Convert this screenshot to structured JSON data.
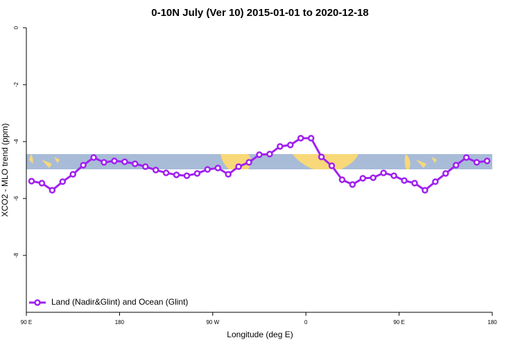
{
  "chart_data": {
    "type": "line",
    "title": "0-10N July (Ver 10)   2015-01-01 to 2020-12-18",
    "x_label": "Longitude (deg E)",
    "y_label": "XCO2 - MLO trend (ppm)",
    "xlim": [
      90,
      540
    ],
    "xticks": [
      {
        "value": 90,
        "label": "90 E"
      },
      {
        "value": 180,
        "label": "180"
      },
      {
        "value": 270,
        "label": "90 W"
      },
      {
        "value": 360,
        "label": "0"
      },
      {
        "value": 450,
        "label": "90 E"
      },
      {
        "value": 540,
        "label": "180"
      }
    ],
    "ylim": [
      -10,
      0
    ],
    "yticks": [
      0,
      -2,
      -4,
      -6,
      -8
    ],
    "legend": "bottom-left",
    "x": [
      95,
      105,
      115,
      125,
      135,
      145,
      155,
      165,
      175,
      185,
      195,
      205,
      215,
      225,
      235,
      245,
      255,
      265,
      275,
      285,
      295,
      305,
      315,
      325,
      335,
      345,
      355,
      365,
      375,
      385,
      395,
      405,
      415,
      425,
      435,
      445,
      455,
      465,
      475,
      485,
      495,
      505,
      515,
      525,
      535
    ],
    "series": [
      {
        "name": "Land (Nadir&Glint) and Ocean (Glint)",
        "color": "#a020f0",
        "values": [
          -5.39,
          -5.46,
          -5.71,
          -5.41,
          -5.15,
          -4.83,
          -4.56,
          -4.73,
          -4.68,
          -4.71,
          -4.78,
          -4.88,
          -5.0,
          -5.1,
          -5.17,
          -5.2,
          -5.12,
          -4.98,
          -4.93,
          -5.15,
          -4.88,
          -4.73,
          -4.46,
          -4.44,
          -4.17,
          -4.12,
          -3.88,
          -3.88,
          -4.54,
          -4.85,
          -5.34,
          -5.51,
          -5.29,
          -5.27,
          -5.1,
          -5.2,
          -5.37,
          -5.46,
          -5.71,
          -5.41,
          -5.12,
          -4.83,
          -4.56,
          -4.73,
          -4.68
        ]
      }
    ]
  }
}
